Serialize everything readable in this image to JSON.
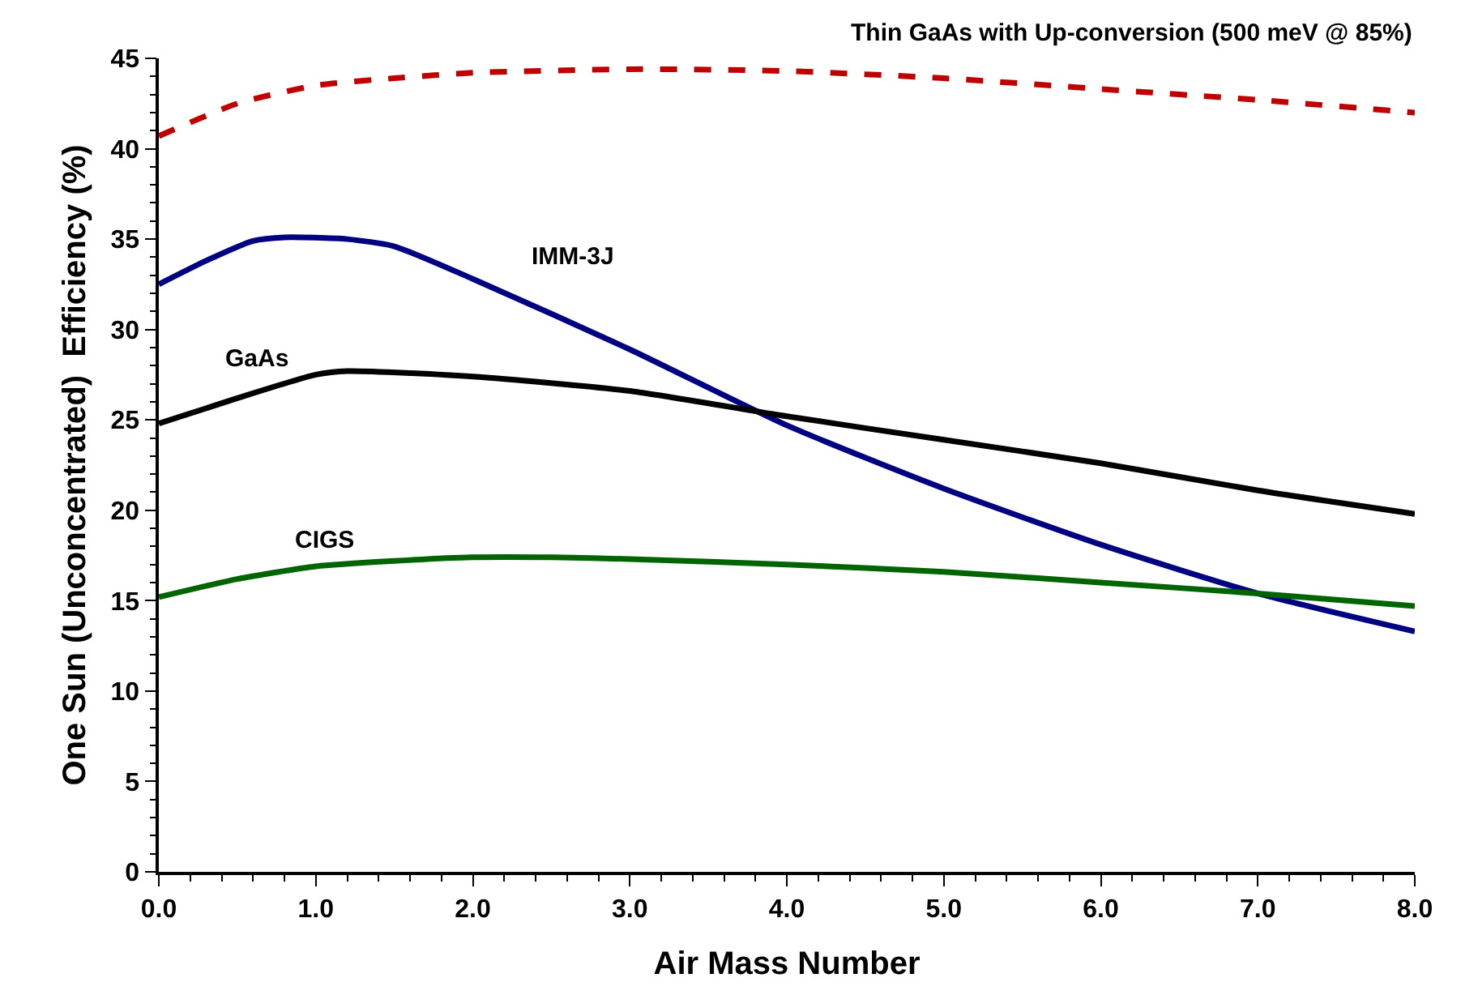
{
  "chart_data": {
    "type": "line",
    "xlabel": "Air Mass Number",
    "ylabel": "One Sun (Unconcentrated)  Efficiency (%)",
    "xlim": [
      0,
      8
    ],
    "xticks": [
      {
        "value": 0,
        "label": "0.0"
      },
      {
        "value": 1,
        "label": "1.0"
      },
      {
        "value": 2,
        "label": "2.0"
      },
      {
        "value": 3,
        "label": "3.0"
      },
      {
        "value": 4,
        "label": "4.0"
      },
      {
        "value": 5,
        "label": "5.0"
      },
      {
        "value": 6,
        "label": "6.0"
      },
      {
        "value": 7,
        "label": "7.0"
      },
      {
        "value": 8,
        "label": "8.0"
      }
    ],
    "ylim": [
      0,
      45
    ],
    "yticks": [
      0,
      5,
      10,
      15,
      20,
      25,
      30,
      35,
      40,
      45
    ],
    "legend": false,
    "marker": "none",
    "series": [
      {
        "name": "Thin GaAs with Up-conversion (500 meV @ 85%)",
        "color": "#c00000",
        "line_style": "dashed",
        "x": [
          0,
          0.5,
          1,
          1.5,
          2,
          3,
          4,
          5,
          6,
          7,
          8
        ],
        "values": [
          40.7,
          42.5,
          43.5,
          43.9,
          44.2,
          44.4,
          44.3,
          43.9,
          43.3,
          42.7,
          42.0
        ]
      },
      {
        "name": "IMM-3J",
        "color": "#000080",
        "line_style": "solid",
        "x": [
          0,
          0.3,
          0.6,
          0.8,
          1.2,
          1.5,
          2,
          3,
          4,
          5,
          6,
          7,
          8
        ],
        "values": [
          32.5,
          33.8,
          34.9,
          35.1,
          35.0,
          34.6,
          32.8,
          28.9,
          24.7,
          21.2,
          18.1,
          15.4,
          13.3
        ]
      },
      {
        "name": "GaAs",
        "color": "#000000",
        "line_style": "solid",
        "x": [
          0,
          0.5,
          1,
          1.2,
          2,
          3,
          4,
          5,
          6,
          7,
          8
        ],
        "values": [
          24.8,
          26.2,
          27.5,
          27.7,
          27.4,
          26.6,
          25.2,
          23.9,
          22.6,
          21.1,
          19.8
        ]
      },
      {
        "name": "CIGS",
        "color": "#006400",
        "line_style": "solid",
        "x": [
          0,
          0.5,
          1,
          1.5,
          2,
          2.5,
          3,
          4,
          5,
          6,
          7,
          8
        ],
        "values": [
          15.2,
          16.2,
          16.9,
          17.2,
          17.4,
          17.4,
          17.3,
          17.0,
          16.6,
          16.0,
          15.4,
          14.7
        ]
      }
    ]
  }
}
